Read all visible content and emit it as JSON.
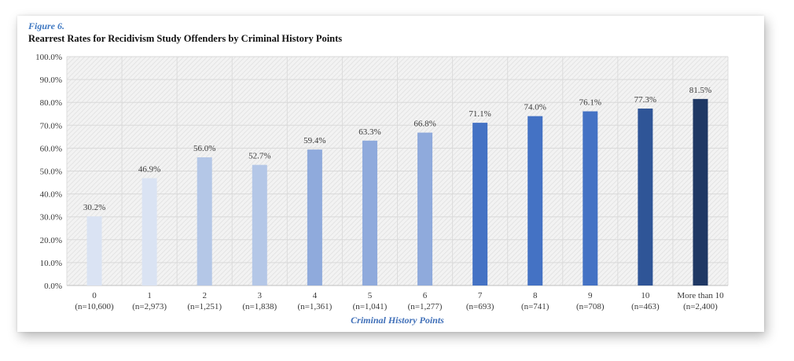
{
  "figure_label": "Figure 6.",
  "chart_data": {
    "type": "bar",
    "title": "Rearrest Rates for Recidivism Study Offenders by Criminal History Points",
    "xlabel": "Criminal History Points",
    "ylabel": "",
    "ylim": [
      0,
      100
    ],
    "yticks": [
      "0.0%",
      "10.0%",
      "20.0%",
      "30.0%",
      "40.0%",
      "50.0%",
      "60.0%",
      "70.0%",
      "80.0%",
      "90.0%",
      "100.0%"
    ],
    "categories": [
      "0",
      "1",
      "2",
      "3",
      "4",
      "5",
      "6",
      "7",
      "8",
      "9",
      "10",
      "More than 10"
    ],
    "category_counts": [
      "(n=10,600)",
      "(n=2,973)",
      "(n=1,251)",
      "(n=1,838)",
      "(n=1,361)",
      "(n=1,041)",
      "(n=1,277)",
      "(n=693)",
      "(n=741)",
      "(n=708)",
      "(n=463)",
      "(n=2,400)"
    ],
    "values": [
      30.2,
      46.9,
      56.0,
      52.7,
      59.4,
      63.3,
      66.8,
      71.1,
      74.0,
      76.1,
      77.3,
      81.5
    ],
    "data_labels": [
      "30.2%",
      "46.9%",
      "56.0%",
      "52.7%",
      "59.4%",
      "63.3%",
      "66.8%",
      "71.1%",
      "74.0%",
      "76.1%",
      "77.3%",
      "81.5%"
    ],
    "bar_colors": [
      "#dae3f3",
      "#dae3f3",
      "#b4c7e7",
      "#b4c7e7",
      "#8faadc",
      "#8faadc",
      "#8faadc",
      "#4472c4",
      "#4472c4",
      "#4472c4",
      "#2f5597",
      "#1f3864"
    ],
    "grid": true,
    "legend": "none",
    "background": "#f2f2f2"
  }
}
